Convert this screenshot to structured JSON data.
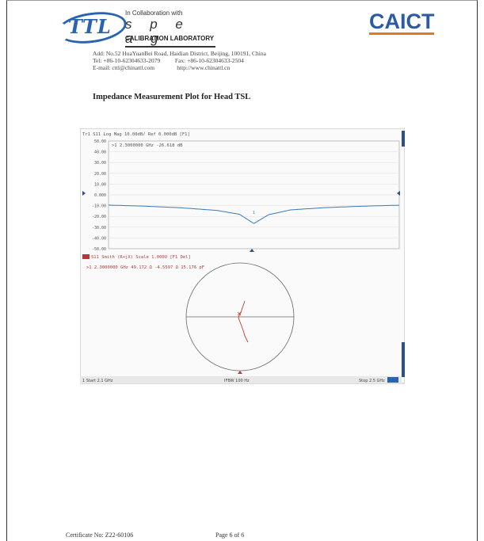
{
  "header": {
    "ttl_logo": "TTL",
    "collab_text": "In Collaboration with",
    "speag_text": "s p e a g",
    "calibration_lab": "CALIBRATION LABORATORY",
    "caict_logo": "CAICT"
  },
  "address": {
    "line1": "Add: No.52 HuaYuanBei Road, Haidian District, Beijing, 100191, China",
    "line2": "Tel: +86-10-62304633-2079          Fax: +86-10-62304633-2504",
    "line3": "E-mail: cttl@chinattl.com               http://www.chinattl.cn"
  },
  "document": {
    "title": "Impedance Measurement Plot for Head TSL"
  },
  "plot": {
    "trace1_header": "Tr1 S11 Log Mag 10.00dB/ Ref 0.000dB [F1]",
    "marker1_readout": ">1  2.3000000 GHz -26.618 dB",
    "trace2_header": "S11 Smith (R+jX) Scale 1.000U [F1 Del]",
    "marker2_readout": ">1  2.3000000 GHz  49.172 Ω  -4.5597 Ω  15.176 pF",
    "y_ticks": [
      "50.00",
      "40.00",
      "30.00",
      "20.00",
      "10.00",
      "0.000",
      "-10.00",
      "-20.00",
      "-30.00",
      "-40.00",
      "-50.00"
    ],
    "start_label": "1  Start 2.1 GHz",
    "ifbw_label": "IFBW 100 Hz",
    "stop_label": "Stop 2.5 GHz",
    "marker_number": "1"
  },
  "chart_data": {
    "type": "line",
    "title": "Tr1 S11 Log Mag 10.00dB/ Ref 0.000dB [F1]",
    "xlabel": "",
    "ylabel": "",
    "xlim": [
      2.1,
      2.5
    ],
    "ylim": [
      -50,
      50
    ],
    "series": [
      {
        "name": "S11",
        "x": [
          2.1,
          2.15,
          2.2,
          2.25,
          2.28,
          2.3,
          2.32,
          2.35,
          2.4,
          2.45,
          2.5
        ],
        "values": [
          -9.5,
          -10.5,
          -12.0,
          -14.5,
          -18.0,
          -26.6,
          -18.5,
          -14.0,
          -11.8,
          -10.5,
          -9.6
        ]
      }
    ],
    "grid": true
  },
  "footer": {
    "certificate": "Certificate No: Z22-60106",
    "page": "Page 6 of 6"
  },
  "colors": {
    "brand_blue": "#2a63b0",
    "caict_orange": "#e07a20",
    "trace_blue": "#3b78b8",
    "trace_red": "#c0392b"
  }
}
